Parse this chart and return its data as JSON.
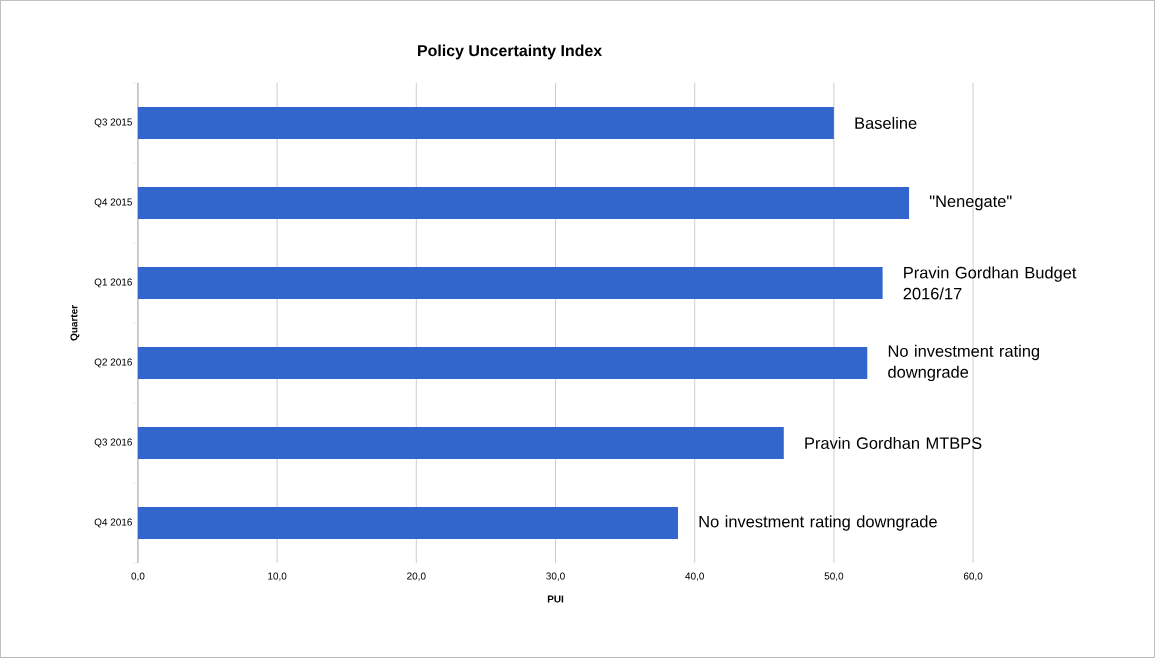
{
  "chart_data": {
    "type": "bar",
    "orientation": "horizontal",
    "title": "Policy Uncertainty Index",
    "xlabel": "PUI",
    "ylabel": "Quarter",
    "categories": [
      "Q3 2015",
      "Q4 2015",
      "Q1 2016",
      "Q2 2016",
      "Q3 2016",
      "Q4 2016"
    ],
    "values": [
      50.0,
      55.4,
      53.5,
      52.4,
      46.4,
      38.8
    ],
    "color": "#3366cc",
    "xlim": [
      0,
      60
    ],
    "xticks": [
      {
        "value": 0,
        "label": "0,0"
      },
      {
        "value": 10,
        "label": "10,0"
      },
      {
        "value": 20,
        "label": "20,0"
      },
      {
        "value": 30,
        "label": "30,0"
      },
      {
        "value": 40,
        "label": "40,0"
      },
      {
        "value": 50,
        "label": "50,0"
      },
      {
        "value": 60,
        "label": "60,0"
      }
    ],
    "grid": "x",
    "annotations": [
      {
        "text": "Baseline",
        "x": 50.0,
        "y": "Q3 2015"
      },
      {
        "text": "\"Nenegate\"",
        "x": 55.4,
        "y": "Q4 2015"
      },
      {
        "text": "Pravin Gordhan Budget 2016/17",
        "x": 53.5,
        "y": "Q1 2016"
      },
      {
        "text": "No investment rating downgrade",
        "x": 52.4,
        "y": "Q2 2016"
      },
      {
        "text": "Pravin Gordhan MTBPS",
        "x": 46.4,
        "y": "Q3 2016"
      },
      {
        "text": "No investment rating downgrade",
        "x": 38.8,
        "y": "Q4 2016"
      }
    ]
  }
}
